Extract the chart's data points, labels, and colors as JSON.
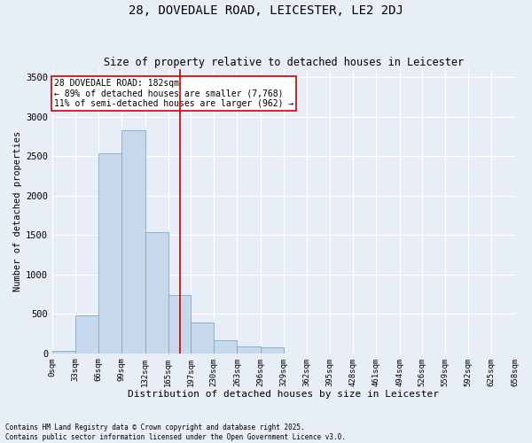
{
  "title": "28, DOVEDALE ROAD, LEICESTER, LE2 2DJ",
  "subtitle": "Size of property relative to detached houses in Leicester",
  "xlabel": "Distribution of detached houses by size in Leicester",
  "ylabel": "Number of detached properties",
  "footnote1": "Contains HM Land Registry data © Crown copyright and database right 2025.",
  "footnote2": "Contains public sector information licensed under the Open Government Licence v3.0.",
  "annotation_line1": "28 DOVEDALE ROAD: 182sqm",
  "annotation_line2": "← 89% of detached houses are smaller (7,768)",
  "annotation_line3": "11% of semi-detached houses are larger (962) →",
  "bar_color": "#c8d8ec",
  "bar_edge_color": "#7aaac8",
  "vline_color": "#cc0000",
  "vline_x": 182,
  "bin_edges": [
    0,
    33,
    66,
    99,
    132,
    165,
    197,
    230,
    263,
    296,
    329,
    362,
    395,
    428,
    461,
    494,
    526,
    559,
    592,
    625,
    658
  ],
  "bar_heights": [
    28,
    480,
    2530,
    2830,
    1540,
    740,
    390,
    170,
    90,
    80,
    0,
    0,
    0,
    0,
    0,
    0,
    0,
    0,
    0,
    0
  ],
  "ylim": [
    0,
    3600
  ],
  "yticks": [
    0,
    500,
    1000,
    1500,
    2000,
    2500,
    3000,
    3500
  ],
  "background_color": "#e8eef8",
  "plot_bg_color": "#e8eef8",
  "grid_color": "#ffffff",
  "annotation_box_color": "#cc0000",
  "title_fontsize": 10,
  "subtitle_fontsize": 8.5,
  "xlabel_fontsize": 8,
  "ylabel_fontsize": 7.5,
  "tick_fontsize": 6.5,
  "ytick_fontsize": 7.5,
  "footnote_fontsize": 5.5,
  "annotation_fontsize": 7
}
